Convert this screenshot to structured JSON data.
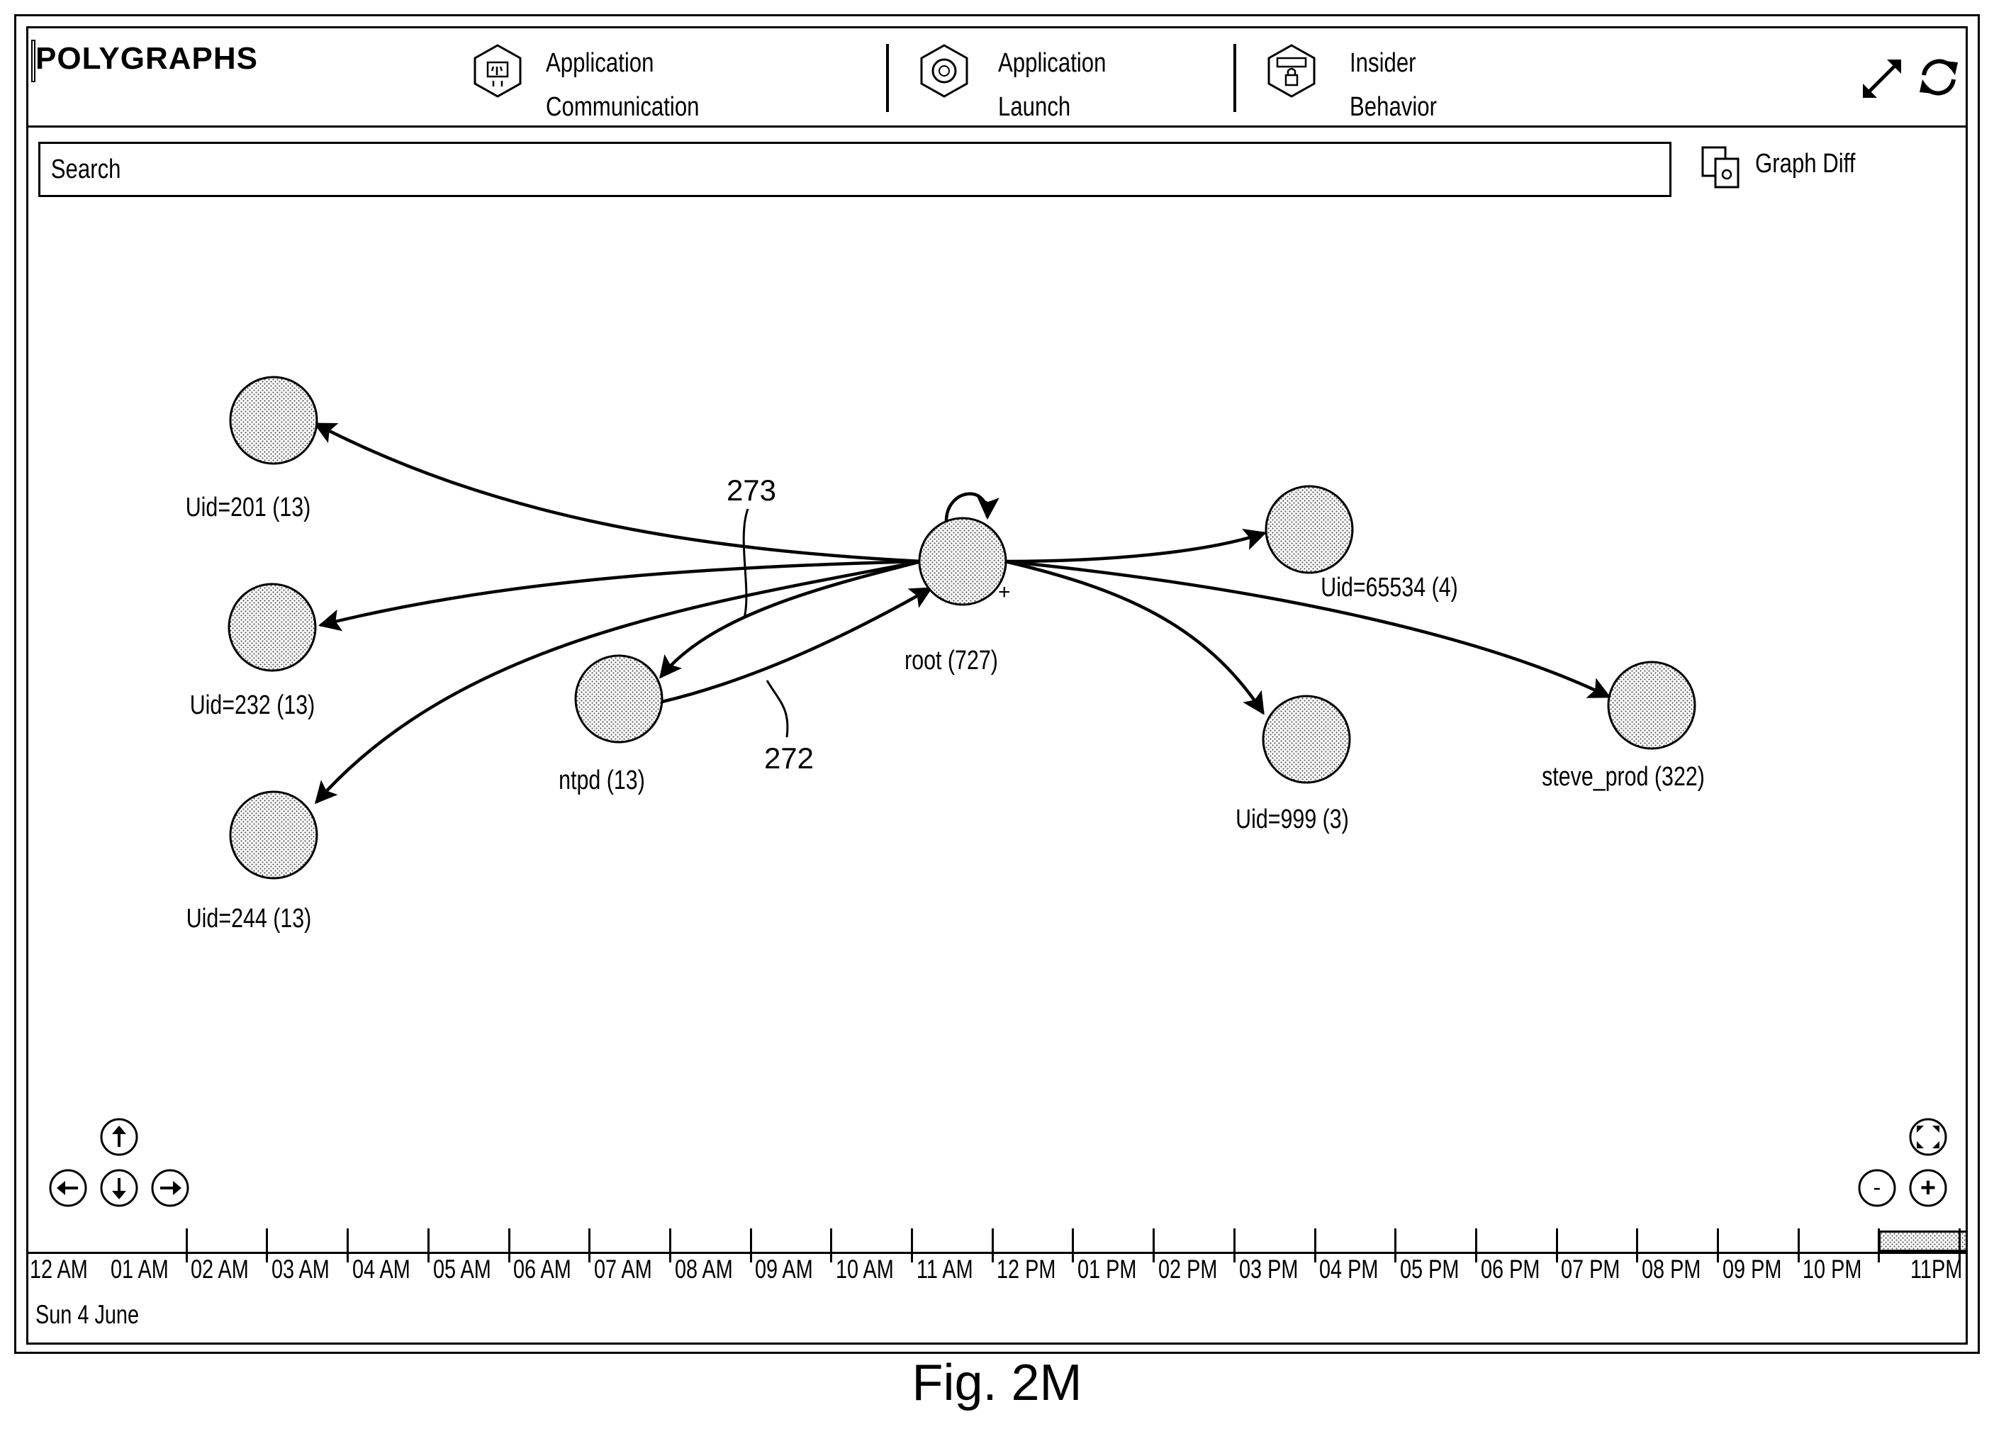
{
  "app": {
    "title": "POLYGRAPHS"
  },
  "nav": {
    "items": [
      {
        "line1": "Application",
        "line2": "Communication",
        "icon": "app-communication-icon"
      },
      {
        "line1": "Application",
        "line2": "Launch",
        "icon": "app-launch-icon"
      },
      {
        "line1": "Insider",
        "line2": "Behavior",
        "icon": "insider-behavior-icon"
      }
    ]
  },
  "controls": {
    "expand_icon": "expand-icon",
    "refresh_icon": "refresh-icon"
  },
  "search": {
    "placeholder": "Search"
  },
  "graph_diff": {
    "label": "Graph Diff",
    "icon": "graph-diff-icon"
  },
  "graph": {
    "nodes": [
      {
        "id": "uid201",
        "label": "Uid=201 (13)"
      },
      {
        "id": "uid232",
        "label": "Uid=232 (13)"
      },
      {
        "id": "uid244",
        "label": "Uid=244 (13)"
      },
      {
        "id": "ntpd",
        "label": "ntpd (13)"
      },
      {
        "id": "root",
        "label": "root (727)"
      },
      {
        "id": "uid65534",
        "label": "Uid=65534 (4)"
      },
      {
        "id": "uid999",
        "label": "Uid=999 (3)"
      },
      {
        "id": "steve_prod",
        "label": "steve_prod (322)"
      }
    ],
    "edges": [
      {
        "from": "root",
        "to": "uid201"
      },
      {
        "from": "root",
        "to": "uid232"
      },
      {
        "from": "root",
        "to": "uid244"
      },
      {
        "from": "root",
        "to": "ntpd"
      },
      {
        "from": "ntpd",
        "to": "root"
      },
      {
        "from": "root",
        "to": "uid65534"
      },
      {
        "from": "root",
        "to": "uid999"
      },
      {
        "from": "root",
        "to": "steve_prod"
      },
      {
        "from": "root",
        "to": "root"
      }
    ],
    "reference_labels": [
      "273",
      "272"
    ],
    "expand_marker": "+"
  },
  "pan_controls": [
    "pan-up-icon",
    "pan-left-icon",
    "pan-down-icon",
    "pan-right-icon"
  ],
  "zoom_controls": {
    "fit": "fit-to-screen-icon",
    "zoom_out": "-",
    "zoom_in": "+"
  },
  "timeline": {
    "hours": [
      "12 AM",
      "01 AM",
      "02 AM",
      "03 AM",
      "04 AM",
      "05 AM",
      "06 AM",
      "07 AM",
      "08 AM",
      "09 AM",
      "10 AM",
      "11 AM",
      "12 PM",
      "01 PM",
      "02 PM",
      "03 PM",
      "04 PM",
      "05 PM",
      "06 PM",
      "07 PM",
      "08 PM",
      "09 PM",
      "10 PM",
      "11PM"
    ],
    "date": "Sun 4 June",
    "selected_hour": "11PM"
  },
  "caption": "Fig. 2M"
}
